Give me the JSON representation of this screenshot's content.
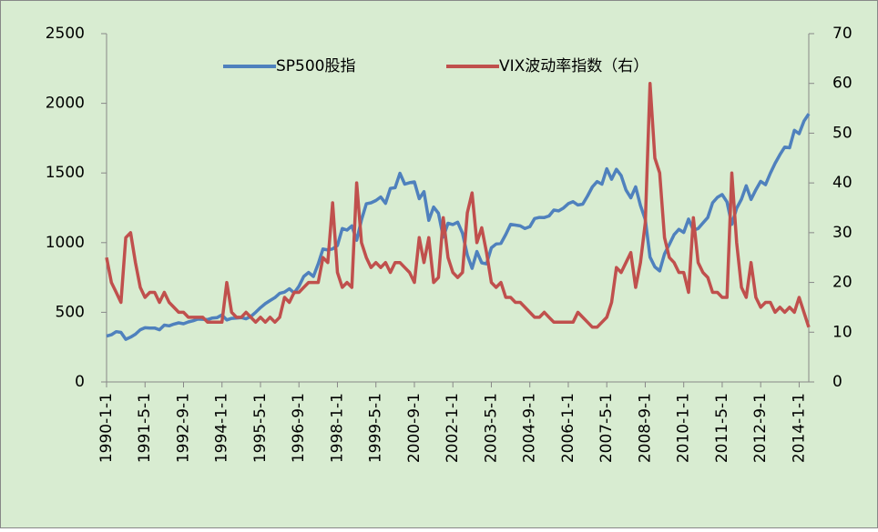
{
  "chart_data": {
    "type": "line",
    "categories": [
      "1990-1-1",
      null,
      null,
      null,
      null,
      null,
      null,
      null,
      "1991-5-1",
      null,
      null,
      null,
      null,
      null,
      null,
      null,
      "1992-9-1",
      null,
      null,
      null,
      null,
      null,
      null,
      null,
      "1994-1-1",
      null,
      null,
      null,
      null,
      null,
      null,
      null,
      "1995-5-1",
      null,
      null,
      null,
      null,
      null,
      null,
      null,
      "1996-9-1",
      null,
      null,
      null,
      null,
      null,
      null,
      null,
      "1998-1-1",
      null,
      null,
      null,
      null,
      null,
      null,
      null,
      "1999-5-1",
      null,
      null,
      null,
      null,
      null,
      null,
      null,
      "2000-9-1",
      null,
      null,
      null,
      null,
      null,
      null,
      null,
      "2002-1-1",
      null,
      null,
      null,
      null,
      null,
      null,
      null,
      "2003-5-1",
      null,
      null,
      null,
      null,
      null,
      null,
      null,
      "2004-9-1",
      null,
      null,
      null,
      null,
      null,
      null,
      null,
      "2006-1-1",
      null,
      null,
      null,
      null,
      null,
      null,
      null,
      "2007-5-1",
      null,
      null,
      null,
      null,
      null,
      null,
      null,
      "2008-9-1",
      null,
      null,
      null,
      null,
      null,
      null,
      null,
      "2010-1-1",
      null,
      null,
      null,
      null,
      null,
      null,
      null,
      "2011-5-1",
      null,
      null,
      null,
      null,
      null,
      null,
      null,
      "2012-9-1",
      null,
      null,
      null,
      null,
      null,
      null,
      null,
      "2014-1-1",
      null,
      null
    ],
    "series": [
      {
        "name": "SP500股指",
        "color": "#4f81bd",
        "values": [
          329,
          339,
          361,
          356,
          306,
          322,
          343,
          375,
          389,
          387,
          387,
          375,
          408,
          403,
          415,
          424,
          418,
          431,
          439,
          451,
          450,
          448,
          459,
          462,
          481,
          445,
          456,
          458,
          462,
          453,
          470,
          500,
          533,
          562,
          584,
          605,
          636,
          645,
          669,
          639,
          687,
          757,
          786,
          757,
          848,
          954,
          947,
          955,
          980,
          1101,
          1090,
          1120,
          1017,
          1163,
          1279,
          1286,
          1302,
          1328,
          1282,
          1389,
          1394,
          1498,
          1420,
          1430,
          1436,
          1315,
          1366,
          1160,
          1255,
          1211,
          1040,
          1139,
          1130,
          1147,
          1067,
          911,
          815,
          936,
          855,
          848,
          963,
          990,
          995,
          1058,
          1131,
          1126,
          1120,
          1101,
          1114,
          1173,
          1181,
          1180,
          1191,
          1234,
          1228,
          1249,
          1280,
          1294,
          1270,
          1276,
          1335,
          1400,
          1438,
          1420,
          1530,
          1455,
          1526,
          1481,
          1378,
          1322,
          1400,
          1267,
          1166,
          896,
          826,
          797,
          919,
          987,
          1057,
          1095,
          1073,
          1169,
          1089,
          1101,
          1141,
          1180,
          1286,
          1325,
          1345,
          1292,
          1131,
          1247,
          1312,
          1408,
          1310,
          1379,
          1440,
          1416,
          1498,
          1569,
          1631,
          1686,
          1681,
          1806,
          1782,
          1872,
          1924
        ]
      },
      {
        "name": "VIX波动率指数（右）",
        "color": "#c0504d",
        "axis": "y2",
        "values": [
          25,
          20,
          18,
          16,
          29,
          30,
          24,
          19,
          17,
          18,
          18,
          16,
          18,
          16,
          15,
          14,
          14,
          13,
          13,
          13,
          13,
          12,
          12,
          12,
          12,
          20,
          14,
          13,
          13,
          14,
          13,
          12,
          13,
          12,
          13,
          12,
          13,
          17,
          16,
          18,
          18,
          19,
          20,
          20,
          20,
          25,
          24,
          36,
          22,
          19,
          20,
          19,
          40,
          28,
          25,
          23,
          24,
          23,
          24,
          22,
          24,
          24,
          23,
          22,
          20,
          29,
          24,
          29,
          20,
          21,
          33,
          25,
          22,
          21,
          22,
          34,
          38,
          28,
          31,
          26,
          20,
          19,
          20,
          17,
          17,
          16,
          16,
          15,
          14,
          13,
          13,
          14,
          13,
          12,
          12,
          12,
          12,
          12,
          14,
          13,
          12,
          11,
          11,
          12,
          13,
          16,
          23,
          22,
          24,
          26,
          19,
          24,
          32,
          60,
          45,
          42,
          29,
          25,
          24,
          22,
          22,
          18,
          33,
          24,
          22,
          21,
          18,
          18,
          17,
          17,
          42,
          28,
          19,
          17,
          24,
          17,
          15,
          16,
          16,
          14,
          15,
          14,
          15,
          14,
          17,
          14,
          11
        ]
      }
    ],
    "ylim": [
      0,
      2500
    ],
    "yticks": [
      0,
      500,
      1000,
      1500,
      2000,
      2500
    ],
    "y2lim": [
      0,
      70
    ],
    "y2ticks": [
      0,
      10,
      20,
      30,
      40,
      50,
      60,
      70
    ],
    "legend": "top"
  }
}
